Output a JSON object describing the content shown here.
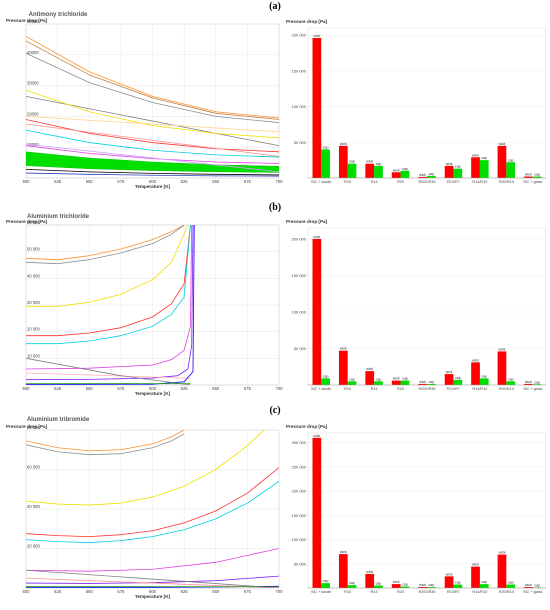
{
  "panels": [
    {
      "label": "(a)",
      "title": "Antimony trichloride"
    },
    {
      "label": "(b)",
      "title": "Aluminium trichloride"
    },
    {
      "label": "(c)",
      "title": "Aluminium tribromide"
    }
  ],
  "colors": {
    "wick": "#ff0000",
    "cap": "#00dd00",
    "band": "#00e000"
  },
  "chart_data": [
    {
      "type": "line",
      "title": "Antimony trichloride",
      "ylabel": "Pressure drop [Pa]",
      "xlabel": "Temperature [K]",
      "xlim": [
        500,
        700
      ],
      "ylim": [
        0,
        50000
      ],
      "xticks": [
        500,
        525,
        550,
        575,
        600,
        625,
        650,
        675,
        700
      ],
      "yticks": [
        10000,
        20000,
        30000,
        40000,
        50000
      ],
      "ytick_labels": [
        "10000",
        "20000",
        "30000",
        "40000",
        "50000"
      ],
      "grid": true,
      "series": [
        {
          "color": "#ff9030",
          "x": [
            500,
            550,
            600,
            650,
            700
          ],
          "y": [
            46000,
            34500,
            26500,
            21500,
            19500
          ]
        },
        {
          "color": "#c08040",
          "x": [
            500,
            550,
            600,
            650,
            700
          ],
          "y": [
            44500,
            33500,
            26000,
            21000,
            19000
          ]
        },
        {
          "color": "#909090",
          "x": [
            500,
            550,
            600,
            650,
            700
          ],
          "y": [
            40500,
            31000,
            24500,
            20000,
            18000
          ]
        },
        {
          "color": "#808080",
          "x": [
            500,
            700
          ],
          "y": [
            26500,
            10500
          ]
        },
        {
          "color": "#f0e000",
          "x": [
            500,
            550,
            600,
            650,
            700
          ],
          "y": [
            28500,
            21500,
            17000,
            14500,
            13000
          ]
        },
        {
          "color": "#ffd090",
          "x": [
            500,
            700
          ],
          "y": [
            20000,
            15000
          ]
        },
        {
          "color": "#ff3030",
          "x": [
            500,
            550,
            600,
            650,
            700
          ],
          "y": [
            19000,
            14500,
            11500,
            9500,
            8500
          ]
        },
        {
          "color": "#ff9090",
          "x": [
            500,
            700
          ],
          "y": [
            17500,
            7000
          ]
        },
        {
          "color": "#00d0e0",
          "x": [
            500,
            550,
            600,
            650,
            700
          ],
          "y": [
            15500,
            11500,
            9000,
            7500,
            6800
          ]
        },
        {
          "color": "#e040e0",
          "x": [
            500,
            550,
            600,
            650,
            700
          ],
          "y": [
            10500,
            8000,
            6300,
            5200,
            4700
          ]
        },
        {
          "color": "#d0a0ff",
          "x": [
            500,
            700
          ],
          "y": [
            11000,
            2000
          ]
        },
        {
          "color": "#000000",
          "x": [
            500,
            550,
            600,
            650,
            700
          ],
          "y": [
            2800,
            2000,
            1500,
            1200,
            1000
          ]
        },
        {
          "color": "#3040c0",
          "x": [
            500,
            550,
            600,
            650,
            700
          ],
          "y": [
            1600,
            1200,
            900,
            700,
            600
          ]
        }
      ],
      "band": {
        "x": [
          500,
          550,
          600,
          650,
          700
        ],
        "upper": [
          8500,
          6500,
          5200,
          4300,
          3800
        ],
        "lower": [
          4000,
          3000,
          2400,
          2000,
          1800
        ]
      }
    },
    {
      "type": "bar",
      "ylabel": "Pressure drop [Pa]",
      "ylim": [
        0,
        210000
      ],
      "yticks": [
        50000,
        100000,
        150000,
        200000
      ],
      "ytick_labels": [
        "50 000",
        "100 000",
        "150 000",
        "200 000"
      ],
      "categories": [
        "SiC + kaolin",
        "R10",
        "R14",
        "R20",
        "R200/R35",
        "R10/R7",
        "R14/R10",
        "R20/R14",
        "SiC + glass"
      ],
      "series": [
        {
          "name": "wick",
          "values": [
            196000,
            45000,
            20000,
            8000,
            1500,
            17000,
            29000,
            45000,
            2000
          ]
        },
        {
          "name": "cap",
          "values": [
            40000,
            20000,
            17000,
            10000,
            3000,
            13000,
            25000,
            22000,
            2000
          ]
        }
      ]
    },
    {
      "type": "line",
      "title": "Aluminium trichloride",
      "ylabel": "Pressure drop [Pa]",
      "xlabel": "Temperature [K]",
      "xlim": [
        500,
        700
      ],
      "ylim": [
        0,
        60000
      ],
      "xticks": [
        500,
        525,
        550,
        575,
        600,
        625,
        650,
        675,
        700
      ],
      "yticks": [
        10000,
        20000,
        30000,
        40000,
        50000,
        60000
      ],
      "ytick_labels": [
        "10 000",
        "20 000",
        "30 000",
        "40 000",
        "50 000",
        "60 000"
      ],
      "grid": true,
      "series": [
        {
          "color": "#ff9030",
          "x": [
            500,
            525,
            550,
            575,
            600,
            615,
            625
          ],
          "y": [
            47500,
            47000,
            48500,
            51000,
            54500,
            57500,
            60000
          ]
        },
        {
          "color": "#909090",
          "x": [
            500,
            525,
            550,
            575,
            600,
            615,
            625
          ],
          "y": [
            46000,
            45500,
            47000,
            49500,
            53000,
            56500,
            60000
          ]
        },
        {
          "color": "#f0e000",
          "x": [
            500,
            525,
            550,
            575,
            600,
            615,
            628
          ],
          "y": [
            29500,
            29500,
            31000,
            34000,
            39500,
            46000,
            60000
          ]
        },
        {
          "color": "#ff3030",
          "x": [
            500,
            525,
            550,
            575,
            600,
            615,
            625,
            630
          ],
          "y": [
            18500,
            18500,
            19500,
            21500,
            25500,
            30500,
            38000,
            60000
          ]
        },
        {
          "color": "#00d0e0",
          "x": [
            500,
            525,
            550,
            575,
            600,
            615,
            625,
            630
          ],
          "y": [
            15500,
            15500,
            16500,
            18500,
            22000,
            26500,
            33000,
            60000
          ]
        },
        {
          "color": "#e040e0",
          "x": [
            500,
            550,
            600,
            615,
            625,
            630,
            631
          ],
          "y": [
            6000,
            6300,
            7500,
            9500,
            13000,
            22000,
            60000
          ]
        },
        {
          "color": "#8020ff",
          "x": [
            500,
            550,
            600,
            620,
            628,
            631,
            632
          ],
          "y": [
            2000,
            2100,
            2600,
            3500,
            6000,
            15000,
            60000
          ]
        },
        {
          "color": "#ffb0b0",
          "x": [
            500,
            600,
            630
          ],
          "y": [
            4500,
            3000,
            2500
          ]
        },
        {
          "color": "#0000ff",
          "x": [
            500,
            600,
            625,
            632,
            633
          ],
          "y": [
            200,
            300,
            1200,
            5000,
            60000
          ]
        },
        {
          "color": "#808080",
          "x": [
            500,
            575,
            630
          ],
          "y": [
            10000,
            3500,
            0
          ]
        },
        {
          "color": "#30a030",
          "x": [
            500,
            630
          ],
          "y": [
            600,
            500
          ]
        }
      ]
    },
    {
      "type": "bar",
      "ylabel": "Pressure drop [Pa]",
      "ylim": [
        0,
        215000
      ],
      "yticks": [
        50000,
        100000,
        150000,
        200000
      ],
      "ytick_labels": [
        "50 000",
        "100 000",
        "150 000",
        "200 000"
      ],
      "categories": [
        "SiC + kaolin",
        "R10",
        "R14",
        "R20",
        "R200/R35",
        "R10/R7",
        "R14/R10",
        "R20/R14",
        "SiC + glass"
      ],
      "series": [
        {
          "name": "wick",
          "values": [
            200000,
            47000,
            19000,
            6000,
            1500,
            15000,
            31000,
            46000,
            1500
          ]
        },
        {
          "name": "cap",
          "values": [
            9000,
            5000,
            5000,
            6000,
            1500,
            7000,
            9000,
            5000,
            1000
          ]
        }
      ]
    },
    {
      "type": "line",
      "title": "Aluminium tribromide",
      "ylabel": "Pressure drop [Pa]",
      "xlabel": "Temperature [K]",
      "xlim": [
        500,
        700
      ],
      "ylim": [
        0,
        80000
      ],
      "xticks": [
        500,
        525,
        550,
        575,
        600,
        625,
        650,
        675,
        700
      ],
      "yticks": [
        20000,
        40000,
        60000,
        80000
      ],
      "ytick_labels": [
        "20 000",
        "40 000",
        "60 000",
        "80 000"
      ],
      "grid": true,
      "series": [
        {
          "color": "#ff9030",
          "x": [
            500,
            525,
            550,
            575,
            600,
            615,
            625
          ],
          "y": [
            74500,
            71000,
            69500,
            70000,
            73000,
            76500,
            80000
          ]
        },
        {
          "color": "#909090",
          "x": [
            500,
            525,
            550,
            575,
            600,
            615,
            625
          ],
          "y": [
            72500,
            69000,
            67500,
            68000,
            71000,
            74500,
            78000
          ]
        },
        {
          "color": "#f0e000",
          "x": [
            500,
            525,
            550,
            575,
            600,
            625,
            650,
            675,
            688
          ],
          "y": [
            44000,
            42500,
            42000,
            43000,
            46000,
            51500,
            60000,
            72000,
            80000
          ]
        },
        {
          "color": "#ff3030",
          "x": [
            500,
            525,
            550,
            575,
            600,
            625,
            650,
            675,
            700
          ],
          "y": [
            27500,
            26500,
            26000,
            27000,
            29000,
            33000,
            39000,
            48000,
            61000
          ]
        },
        {
          "color": "#00d0e0",
          "x": [
            500,
            525,
            550,
            575,
            600,
            625,
            650,
            675,
            700
          ],
          "y": [
            24500,
            23500,
            23000,
            24000,
            26000,
            29500,
            35000,
            43000,
            54000
          ]
        },
        {
          "color": "#e040e0",
          "x": [
            500,
            550,
            600,
            650,
            700
          ],
          "y": [
            9000,
            8500,
            9500,
            13000,
            20000
          ]
        },
        {
          "color": "#8020ff",
          "x": [
            500,
            550,
            600,
            650,
            700
          ],
          "y": [
            2500,
            2300,
            2700,
            3700,
            6000
          ]
        },
        {
          "color": "#0000ff",
          "x": [
            500,
            550,
            600,
            650,
            700
          ],
          "y": [
            300,
            300,
            350,
            500,
            900
          ]
        },
        {
          "color": "#808080",
          "x": [
            500,
            700
          ],
          "y": [
            9000,
            0
          ]
        },
        {
          "color": "#ff9090",
          "x": [
            500,
            700
          ],
          "y": [
            5000,
            0
          ]
        },
        {
          "color": "#30a030",
          "x": [
            500,
            700
          ],
          "y": [
            800,
            600
          ]
        }
      ]
    },
    {
      "type": "bar",
      "ylabel": "Pressure drop [Pa]",
      "ylim": [
        0,
        320000
      ],
      "yticks": [
        50000,
        100000,
        150000,
        200000,
        250000,
        300000
      ],
      "ytick_labels": [
        "50 000",
        "100 000",
        "150 000",
        "200 000",
        "250 000",
        "300 000"
      ],
      "categories": [
        "SiC + kaolin",
        "R10",
        "R14",
        "R20",
        "R200/R35",
        "R10/R7",
        "R14/R10",
        "R20/R14",
        "SiC + glass"
      ],
      "series": [
        {
          "name": "wick",
          "values": [
            310000,
            70000,
            29000,
            8000,
            2000,
            24000,
            44000,
            69000,
            2000
          ]
        },
        {
          "name": "cap",
          "values": [
            10000,
            6000,
            5000,
            3000,
            2000,
            7000,
            8000,
            7000,
            1000
          ]
        }
      ]
    }
  ]
}
